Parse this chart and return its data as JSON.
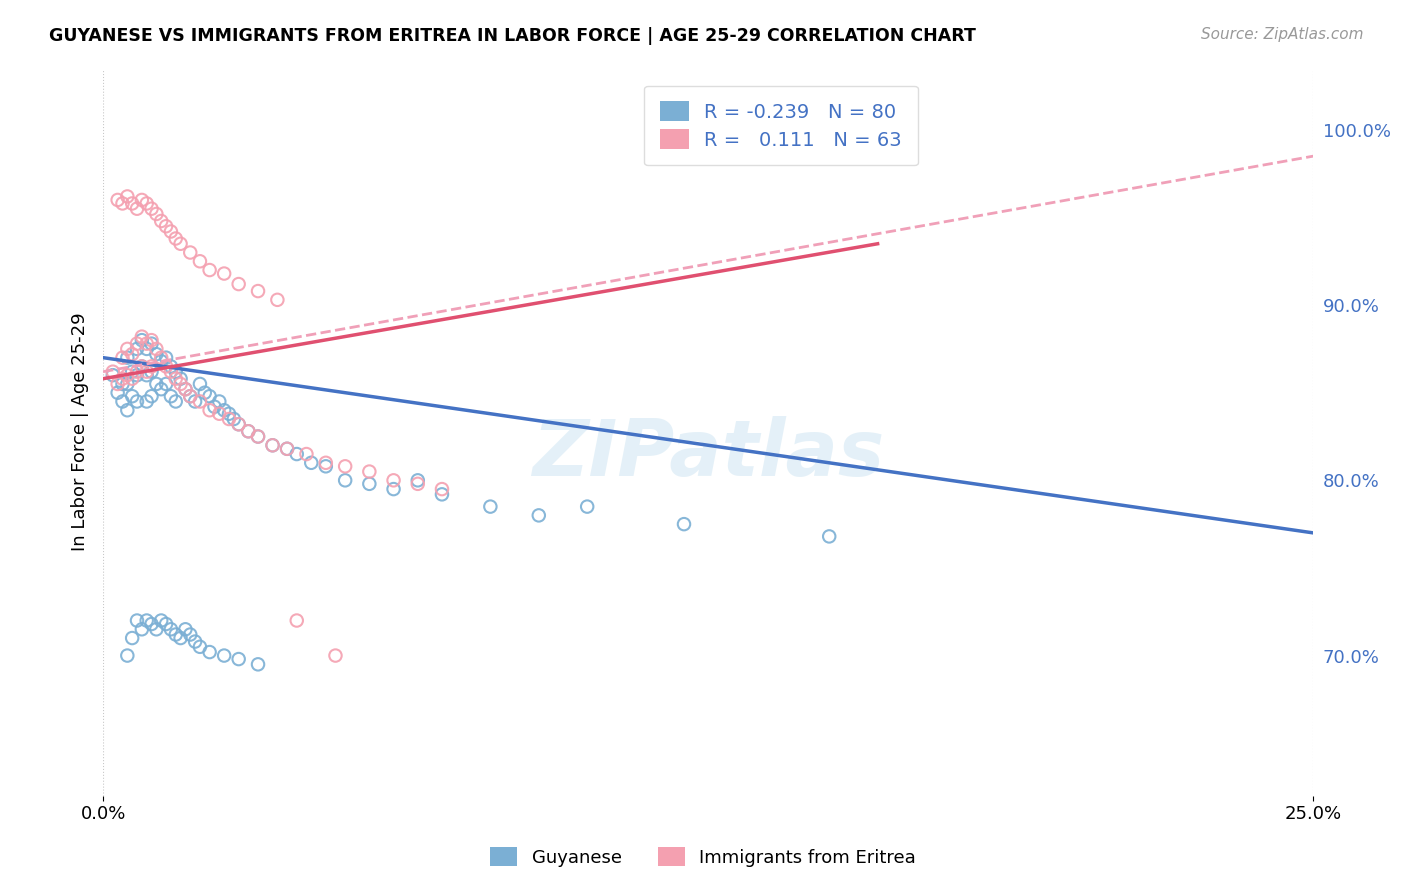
{
  "title": "GUYANESE VS IMMIGRANTS FROM ERITREA IN LABOR FORCE | AGE 25-29 CORRELATION CHART",
  "source": "Source: ZipAtlas.com",
  "ylabel": "In Labor Force | Age 25-29",
  "xmin": 0.0,
  "xmax": 0.25,
  "ymin": 0.62,
  "ymax": 1.035,
  "right_yticks": [
    1.0,
    0.9,
    0.8,
    0.7
  ],
  "right_ytick_labels": [
    "100.0%",
    "90.0%",
    "80.0%",
    "70.0%"
  ],
  "blue_color": "#7BAFD4",
  "pink_color": "#F4A0B0",
  "blue_line_color": "#4472C4",
  "pink_line_color": "#E05070",
  "pink_dash_color": "#F0A0B8",
  "watermark": "ZIPatlas",
  "blue_scatter_x": [
    0.002,
    0.003,
    0.004,
    0.004,
    0.005,
    0.005,
    0.005,
    0.006,
    0.006,
    0.007,
    0.007,
    0.007,
    0.008,
    0.008,
    0.009,
    0.009,
    0.009,
    0.01,
    0.01,
    0.01,
    0.011,
    0.011,
    0.012,
    0.012,
    0.013,
    0.013,
    0.014,
    0.014,
    0.015,
    0.015,
    0.016,
    0.017,
    0.018,
    0.019,
    0.02,
    0.021,
    0.022,
    0.023,
    0.024,
    0.025,
    0.026,
    0.027,
    0.028,
    0.03,
    0.032,
    0.035,
    0.038,
    0.04,
    0.043,
    0.046,
    0.05,
    0.055,
    0.06,
    0.065,
    0.07,
    0.08,
    0.09,
    0.1,
    0.12,
    0.15,
    0.005,
    0.006,
    0.007,
    0.008,
    0.009,
    0.01,
    0.011,
    0.012,
    0.013,
    0.014,
    0.015,
    0.016,
    0.017,
    0.018,
    0.019,
    0.02,
    0.022,
    0.025,
    0.028,
    0.032
  ],
  "blue_scatter_y": [
    0.86,
    0.85,
    0.855,
    0.845,
    0.87,
    0.855,
    0.84,
    0.862,
    0.848,
    0.875,
    0.86,
    0.845,
    0.88,
    0.865,
    0.875,
    0.86,
    0.845,
    0.878,
    0.862,
    0.848,
    0.872,
    0.855,
    0.868,
    0.852,
    0.87,
    0.855,
    0.865,
    0.848,
    0.862,
    0.845,
    0.858,
    0.852,
    0.848,
    0.845,
    0.855,
    0.85,
    0.848,
    0.842,
    0.845,
    0.84,
    0.838,
    0.835,
    0.832,
    0.828,
    0.825,
    0.82,
    0.818,
    0.815,
    0.81,
    0.808,
    0.8,
    0.798,
    0.795,
    0.8,
    0.792,
    0.785,
    0.78,
    0.785,
    0.775,
    0.768,
    0.7,
    0.71,
    0.72,
    0.715,
    0.72,
    0.718,
    0.715,
    0.72,
    0.718,
    0.715,
    0.712,
    0.71,
    0.715,
    0.712,
    0.708,
    0.705,
    0.702,
    0.7,
    0.698,
    0.695
  ],
  "pink_scatter_x": [
    0.002,
    0.003,
    0.004,
    0.004,
    0.005,
    0.005,
    0.006,
    0.006,
    0.007,
    0.007,
    0.008,
    0.008,
    0.009,
    0.009,
    0.01,
    0.01,
    0.011,
    0.012,
    0.013,
    0.014,
    0.015,
    0.016,
    0.017,
    0.018,
    0.02,
    0.022,
    0.024,
    0.026,
    0.028,
    0.03,
    0.032,
    0.035,
    0.038,
    0.042,
    0.046,
    0.05,
    0.055,
    0.06,
    0.065,
    0.07,
    0.003,
    0.004,
    0.005,
    0.006,
    0.007,
    0.008,
    0.009,
    0.01,
    0.011,
    0.012,
    0.013,
    0.014,
    0.015,
    0.016,
    0.018,
    0.02,
    0.022,
    0.025,
    0.028,
    0.032,
    0.036,
    0.04,
    0.048
  ],
  "pink_scatter_y": [
    0.862,
    0.855,
    0.87,
    0.858,
    0.875,
    0.86,
    0.872,
    0.858,
    0.878,
    0.862,
    0.882,
    0.865,
    0.878,
    0.862,
    0.88,
    0.865,
    0.875,
    0.87,
    0.865,
    0.862,
    0.858,
    0.855,
    0.852,
    0.848,
    0.845,
    0.84,
    0.838,
    0.835,
    0.832,
    0.828,
    0.825,
    0.82,
    0.818,
    0.815,
    0.81,
    0.808,
    0.805,
    0.8,
    0.798,
    0.795,
    0.96,
    0.958,
    0.962,
    0.958,
    0.955,
    0.96,
    0.958,
    0.955,
    0.952,
    0.948,
    0.945,
    0.942,
    0.938,
    0.935,
    0.93,
    0.925,
    0.92,
    0.918,
    0.912,
    0.908,
    0.903,
    0.72,
    0.7
  ],
  "blue_trend_x": [
    0.0,
    0.25
  ],
  "blue_trend_y": [
    0.87,
    0.77
  ],
  "pink_solid_trend_x": [
    0.0,
    0.16
  ],
  "pink_solid_trend_y": [
    0.858,
    0.935
  ],
  "pink_dash_trend_x": [
    0.0,
    0.25
  ],
  "pink_dash_trend_y": [
    0.862,
    0.985
  ]
}
